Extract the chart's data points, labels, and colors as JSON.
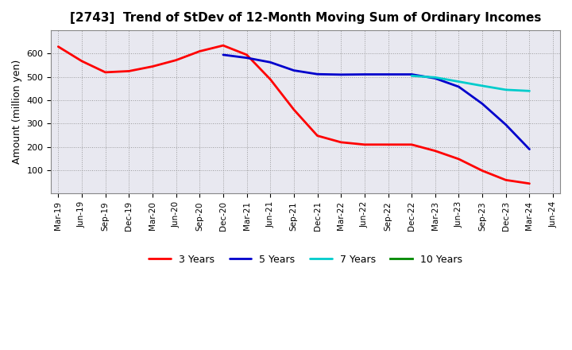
{
  "title": "[2743]  Trend of StDev of 12-Month Moving Sum of Ordinary Incomes",
  "ylabel": "Amount (million yen)",
  "background_color": "#ffffff",
  "plot_bg_color": "#e8e8f0",
  "grid_color": "#888888",
  "x_labels": [
    "Mar-19",
    "Jun-19",
    "Sep-19",
    "Dec-19",
    "Mar-20",
    "Jun-20",
    "Sep-20",
    "Dec-20",
    "Mar-21",
    "Jun-21",
    "Sep-21",
    "Dec-21",
    "Mar-22",
    "Jun-22",
    "Sep-22",
    "Dec-22",
    "Mar-23",
    "Jun-23",
    "Sep-23",
    "Dec-23",
    "Mar-24",
    "Jun-24"
  ],
  "ylim": [
    0,
    700
  ],
  "yticks": [
    100,
    200,
    300,
    400,
    500,
    600
  ],
  "series": {
    "3 Years": {
      "color": "#ff0000",
      "linewidth": 2.0,
      "data": [
        630,
        568,
        520,
        525,
        545,
        572,
        610,
        635,
        595,
        490,
        360,
        248,
        220,
        210,
        210,
        210,
        183,
        148,
        98,
        58,
        43,
        null
      ]
    },
    "5 Years": {
      "color": "#0000cc",
      "linewidth": 2.0,
      "data": [
        null,
        null,
        null,
        null,
        null,
        null,
        null,
        595,
        582,
        563,
        528,
        512,
        510,
        511,
        511,
        511,
        494,
        458,
        385,
        295,
        190,
        null
      ]
    },
    "7 Years": {
      "color": "#00cccc",
      "linewidth": 2.0,
      "data": [
        null,
        null,
        null,
        null,
        null,
        null,
        null,
        null,
        null,
        null,
        null,
        null,
        null,
        null,
        null,
        505,
        498,
        480,
        462,
        445,
        440,
        null
      ]
    },
    "10 Years": {
      "color": "#008800",
      "linewidth": 2.0,
      "data": [
        null,
        null,
        null,
        null,
        null,
        null,
        null,
        null,
        null,
        null,
        null,
        null,
        null,
        null,
        null,
        null,
        null,
        null,
        null,
        null,
        null,
        null
      ]
    }
  },
  "legend_order": [
    "3 Years",
    "5 Years",
    "7 Years",
    "10 Years"
  ]
}
